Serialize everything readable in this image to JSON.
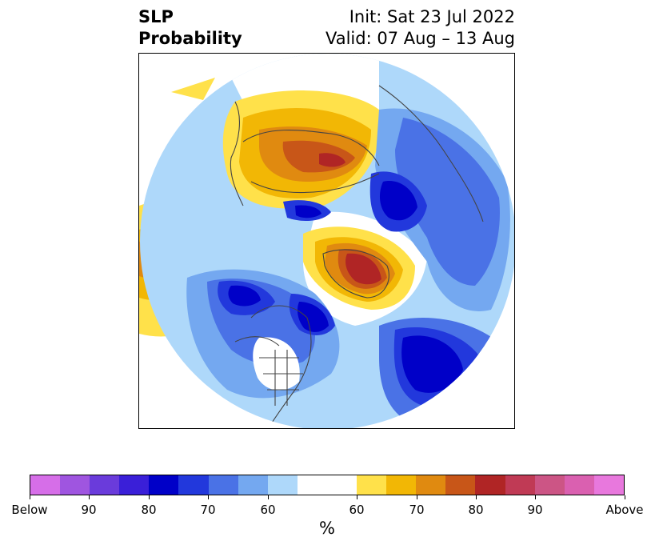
{
  "title": {
    "left_line1": "SLP",
    "left_line2": "Probability",
    "right_line1": "Init: Sat 23 Jul 2022",
    "right_line2": "Valid: 07 Aug – 13 Aug"
  },
  "colorbar": {
    "colors": [
      "#d66ee8",
      "#9f55e0",
      "#6a3bdb",
      "#3a1fd8",
      "#0000c8",
      "#2238dc",
      "#4a72e6",
      "#74a8f0",
      "#aed8fa",
      "#ffffff",
      "#ffffff",
      "#ffe14a",
      "#f2b705",
      "#e08a10",
      "#c85618",
      "#b02525",
      "#c03a55",
      "#cc5585",
      "#da60b0",
      "#e878dd"
    ],
    "tick_labels": [
      "Below",
      "90",
      "80",
      "70",
      "60",
      "60",
      "70",
      "80",
      "90",
      "Above"
    ],
    "units_label": "%"
  },
  "map": {
    "projection": "north-polar-stereographic",
    "variable": "sea level pressure tercile probability"
  }
}
